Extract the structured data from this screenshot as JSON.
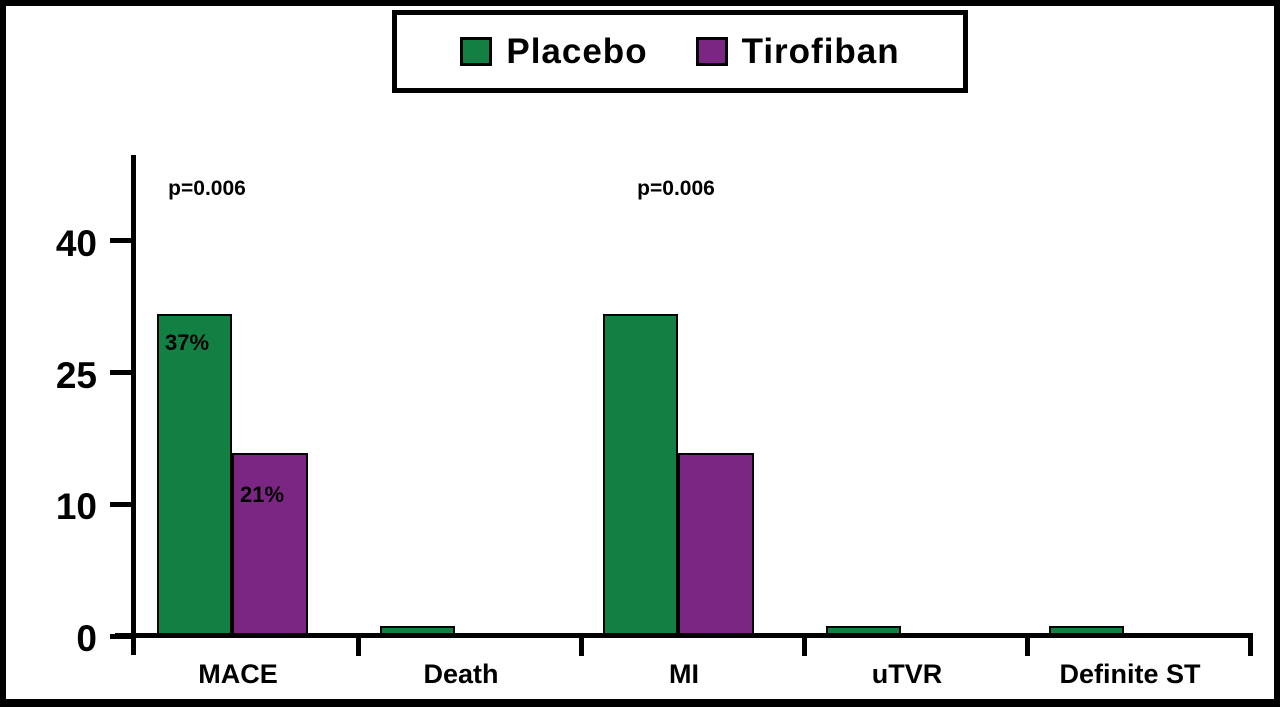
{
  "figure": {
    "background_color": "#ffffff",
    "frame_border_color": "#000000"
  },
  "legend": {
    "items": [
      {
        "label": "Placebo",
        "color": "#118042"
      },
      {
        "label": "Tirofiban",
        "color": "#7C2683"
      }
    ]
  },
  "chart_data": {
    "type": "bar",
    "title": "",
    "xlabel": "",
    "ylabel": "",
    "categories": [
      "MACE",
      "Death",
      "MI",
      "uTVR",
      "Definite ST"
    ],
    "series": [
      {
        "name": "Placebo",
        "color": "#118042",
        "values": [
          37,
          1,
          37,
          1,
          1
        ]
      },
      {
        "name": "Tirofiban",
        "color": "#7C2683",
        "values": [
          21,
          0,
          21,
          0,
          0
        ]
      }
    ],
    "bar_labels": [
      {
        "category": "MACE",
        "series_index": 0,
        "text": "37%"
      },
      {
        "category": "MACE",
        "series_index": 1,
        "text": "21%"
      }
    ],
    "annotations": [
      {
        "text": "p=0.006",
        "category": "MACE"
      },
      {
        "text": "p=0.006",
        "category": "MI"
      }
    ],
    "y_ticks": [
      "0",
      "10",
      "25",
      "40"
    ],
    "ylim": [
      0,
      45
    ],
    "grid": false,
    "legend_position": "top-center",
    "axis_color": "#000000",
    "notes": "unlabeled small bars estimated at ~1%"
  }
}
